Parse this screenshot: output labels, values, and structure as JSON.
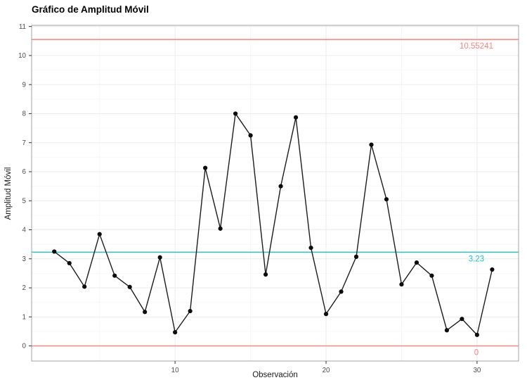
{
  "chart_data": {
    "type": "line",
    "title": "Gráfico de Amplitud Móvil",
    "xlabel": "Observación",
    "ylabel": "Amplitud Móvil",
    "x": [
      2,
      3,
      4,
      5,
      6,
      7,
      8,
      9,
      10,
      11,
      12,
      13,
      14,
      15,
      16,
      17,
      18,
      19,
      20,
      21,
      22,
      23,
      24,
      25,
      26,
      27,
      28,
      29,
      30,
      31
    ],
    "y": [
      3.25,
      2.85,
      2.04,
      3.85,
      2.42,
      2.03,
      1.17,
      3.05,
      0.47,
      1.2,
      6.13,
      4.04,
      8.0,
      7.25,
      2.46,
      5.5,
      7.87,
      3.38,
      1.1,
      1.87,
      3.07,
      6.93,
      5.05,
      2.12,
      2.87,
      2.42,
      0.54,
      0.93,
      0.38,
      2.63
    ],
    "control_lines": [
      {
        "name": "UCL",
        "value": 10.55241,
        "label": "10.55241",
        "color": "#f8837c"
      },
      {
        "name": "CL",
        "value": 3.23,
        "label": "3.23",
        "color": "#1fc3c9"
      },
      {
        "name": "LCL",
        "value": 0,
        "label": "0",
        "color": "#f8837c"
      }
    ],
    "x_ticks": [
      10,
      20,
      30
    ],
    "y_ticks": [
      0,
      1,
      2,
      3,
      4,
      5,
      6,
      7,
      8,
      9,
      10,
      11
    ],
    "x_minor_ticks": [
      5,
      15,
      25
    ],
    "y_minor_ticks": [
      0.5,
      1.5,
      2.5,
      3.5,
      4.5,
      5.5,
      6.5,
      7.5,
      8.5,
      9.5,
      10.5
    ],
    "xlim": [
      0.5,
      32.75
    ],
    "ylim": [
      -0.52,
      11.04
    ],
    "grid": true,
    "legend": "none",
    "colors": {
      "series_line": "#1c1c1c",
      "point": "#0d0d0d",
      "limit_line": "#f8837c",
      "center_line": "#1fc3c9",
      "grid_major": "#ebebeb",
      "grid_minor": "#f7f7f7",
      "panel_border": "#a3a3a3",
      "tick_mark": "#333333",
      "tick_label": "#4d4d4d"
    }
  }
}
